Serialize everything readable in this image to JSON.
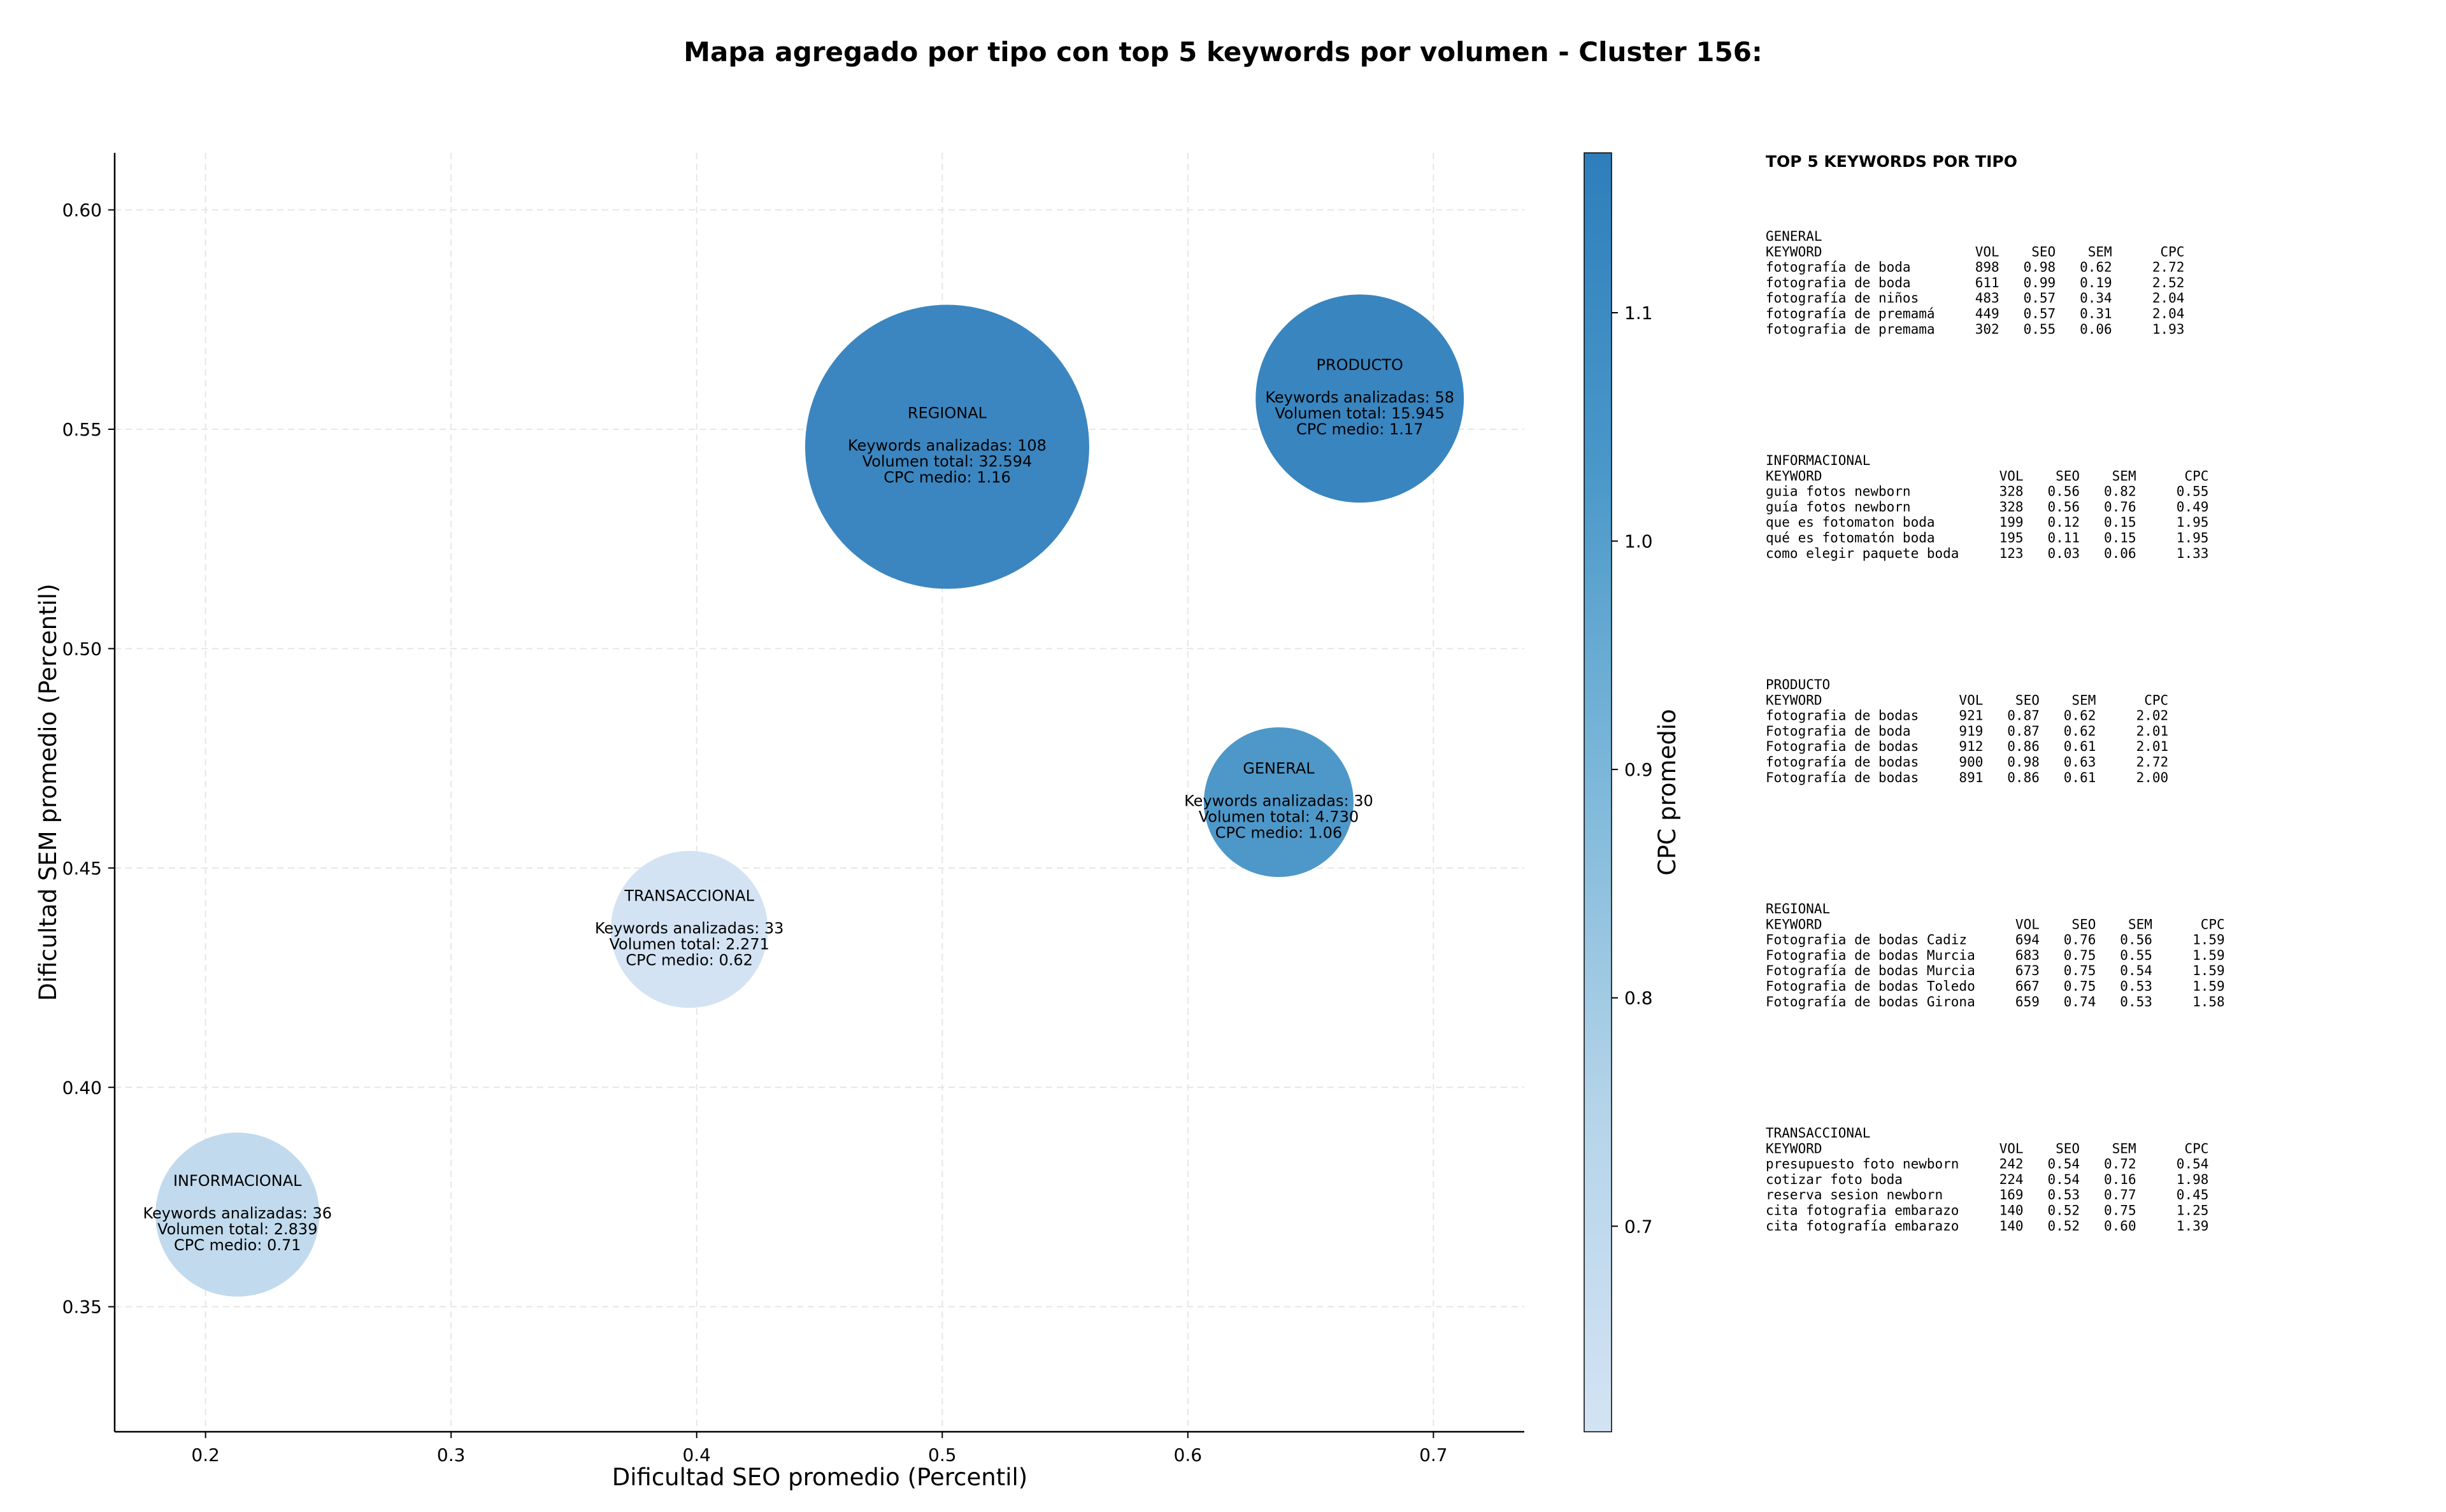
{
  "chart_data": {
    "type": "scatter",
    "title": "Mapa agregado por tipo con top 5 keywords por volumen - Cluster 156:",
    "xlabel": "Dificultad SEO promedio (Percentil)",
    "ylabel": "Dificultad SEM promedio (Percentil)",
    "xlim": [
      0.163,
      0.737
    ],
    "ylim": [
      0.3215,
      0.613
    ],
    "xticks": [
      "0.2",
      "0.3",
      "0.4",
      "0.5",
      "0.6",
      "0.7"
    ],
    "yticks": [
      "0.35",
      "0.40",
      "0.45",
      "0.50",
      "0.55",
      "0.60"
    ],
    "grid": true,
    "colorbar": {
      "label": "CPC promedio",
      "range": [
        0.61,
        1.17
      ],
      "ticks": [
        "0.7",
        "0.8",
        "0.9",
        "1.0",
        "1.1"
      ]
    },
    "points": [
      {
        "name": "REGIONAL",
        "x": 0.502,
        "y": 0.546,
        "cpc": 1.16,
        "size": 108,
        "lines": [
          "Keywords analizadas: 108",
          "Volumen total: 32.594",
          "CPC medio: 1.16"
        ]
      },
      {
        "name": "PRODUCTO",
        "x": 0.67,
        "y": 0.557,
        "cpc": 1.17,
        "size": 58,
        "lines": [
          "Keywords analizadas: 58",
          "Volumen total: 15.945",
          "CPC medio: 1.17"
        ]
      },
      {
        "name": "GENERAL",
        "x": 0.637,
        "y": 0.465,
        "cpc": 1.06,
        "size": 30,
        "lines": [
          "Keywords analizadas: 30",
          "Volumen total: 4.730",
          "CPC medio: 1.06"
        ]
      },
      {
        "name": "TRANSACCIONAL",
        "x": 0.397,
        "y": 0.436,
        "cpc": 0.62,
        "size": 33,
        "lines": [
          "Keywords analizadas: 33",
          "Volumen total: 2.271",
          "CPC medio: 0.62"
        ]
      },
      {
        "name": "INFORMACIONAL",
        "x": 0.213,
        "y": 0.371,
        "cpc": 0.71,
        "size": 36,
        "lines": [
          "Keywords analizadas: 36",
          "Volumen total: 2.839",
          "CPC medio: 0.71"
        ]
      }
    ]
  },
  "table_panel": {
    "heading": "TOP 5 KEYWORDS POR TIPO",
    "groups": [
      {
        "type": "GENERAL",
        "header": "KEYWORD                   VOL    SEO    SEM      CPC",
        "rows": [
          "fotografía de boda        898   0.98   0.62     2.72",
          "fotografia de boda        611   0.99   0.19     2.52",
          "fotografía de niños       483   0.57   0.34     2.04",
          "fotografía de premamá     449   0.57   0.31     2.04",
          "fotografia de premama     302   0.55   0.06     1.93"
        ]
      },
      {
        "type": "INFORMACIONAL",
        "header": "KEYWORD                      VOL    SEO    SEM      CPC",
        "rows": [
          "guia fotos newborn           328   0.56   0.82     0.55",
          "guía fotos newborn           328   0.56   0.76     0.49",
          "que es fotomaton boda        199   0.12   0.15     1.95",
          "qué es fotomatón boda        195   0.11   0.15     1.95",
          "como elegir paquete boda     123   0.03   0.06     1.33"
        ]
      },
      {
        "type": "PRODUCTO",
        "header": "KEYWORD                 VOL    SEO    SEM      CPC",
        "rows": [
          "fotografia de bodas     921   0.87   0.62     2.02",
          "Fotografia de boda      919   0.87   0.62     2.01",
          "Fotografia de bodas     912   0.86   0.61     2.01",
          "fotografía de bodas     900   0.98   0.63     2.72",
          "Fotografía de bodas     891   0.86   0.61     2.00"
        ]
      },
      {
        "type": "REGIONAL",
        "header": "KEYWORD                        VOL    SEO    SEM      CPC",
        "rows": [
          "Fotografia de bodas Cadiz      694   0.76   0.56     1.59",
          "Fotografia de bodas Murcia     683   0.75   0.55     1.59",
          "Fotografía de bodas Murcia     673   0.75   0.54     1.59",
          "Fotografia de bodas Toledo     667   0.75   0.53     1.59",
          "Fotografía de bodas Girona     659   0.74   0.53     1.58"
        ]
      },
      {
        "type": "TRANSACCIONAL",
        "header": "KEYWORD                      VOL    SEO    SEM      CPC",
        "rows": [
          "presupuesto foto newborn     242   0.54   0.72     0.54",
          "cotizar foto boda            224   0.54   0.16     1.98",
          "reserva sesion newborn       169   0.53   0.77     0.45",
          "cita fotografia embarazo     140   0.52   0.75     1.25",
          "cita fotografía embarazo     140   0.52   0.60     1.39"
        ]
      }
    ]
  }
}
